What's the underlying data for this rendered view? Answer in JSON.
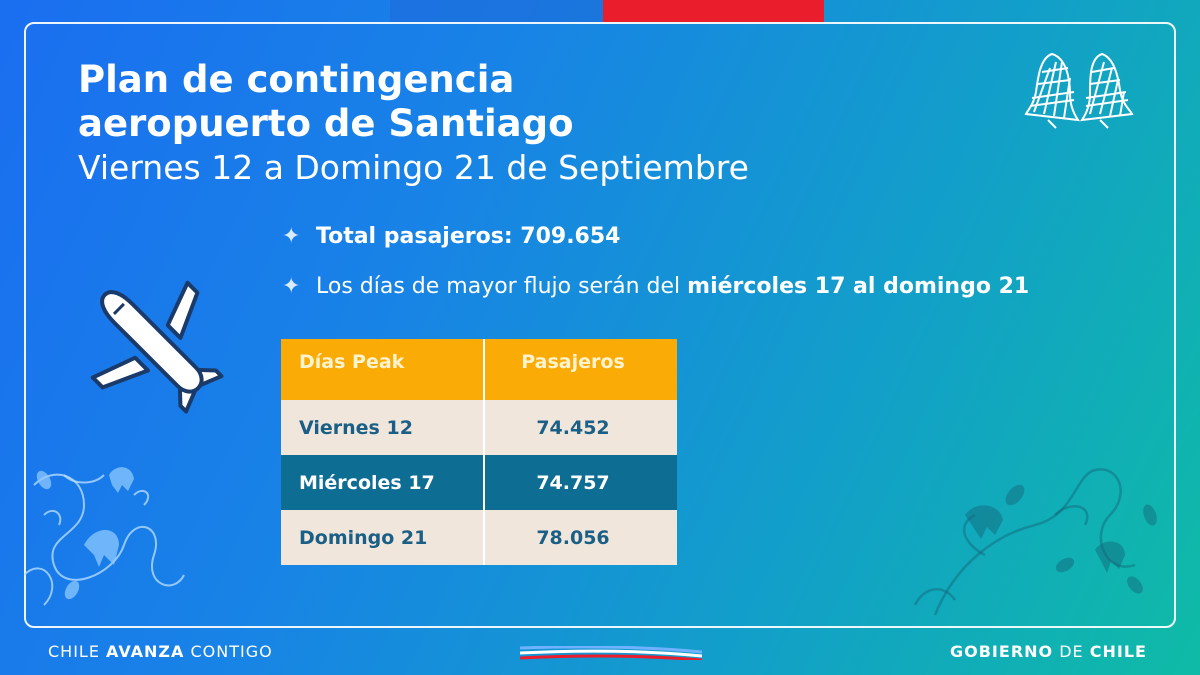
{
  "header": {
    "title_line1": "Plan de contingencia",
    "title_line2": "aeropuerto de Santiago",
    "subtitle": "Viernes 12 a Domingo 21 de Septiembre"
  },
  "bullets": {
    "total": "Total pasajeros: 709.654",
    "flow_prefix": "Los días de mayor flujo serán del ",
    "flow_highlight": "miércoles 17 al domingo 21"
  },
  "table": {
    "headers": [
      "Días Peak",
      "Pasajeros"
    ],
    "rows": [
      {
        "day": "Viernes 12",
        "passengers": "74.452"
      },
      {
        "day": "Miércoles 17",
        "passengers": "74.757"
      },
      {
        "day": "Domingo 21",
        "passengers": "78.056"
      }
    ]
  },
  "footer": {
    "left_a": "CHILE ",
    "left_b": "AVANZA",
    "left_c": " CONTIGO",
    "right_a": "GOBIERNO",
    "right_b": " DE ",
    "right_c": "CHILE"
  },
  "colors": {
    "table_header": "#fbab06",
    "row_light": "#f1e6dc",
    "row_dark": "#0e6d93",
    "accent_red": "#ea1d2c"
  },
  "icons": [
    "airplane-icon",
    "bells-icon",
    "flower-decoration",
    "sparkle-icon"
  ]
}
